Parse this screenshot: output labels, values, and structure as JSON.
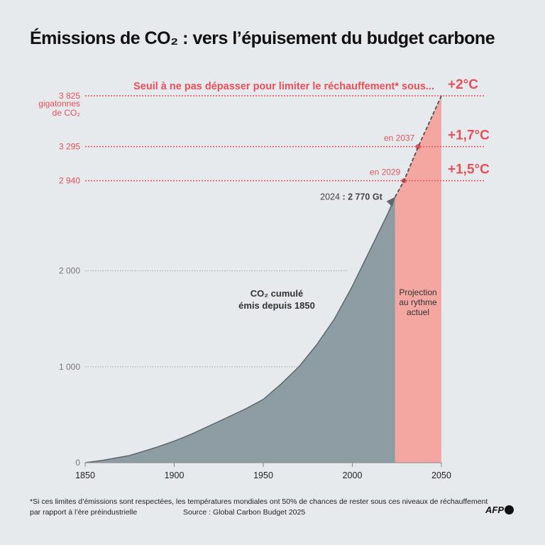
{
  "title": "Émissions de CO₂ : vers l’épuisement du budget carbone",
  "chart_data": {
    "type": "area",
    "title": "Émissions de CO₂ : vers l’épuisement du budget carbone",
    "xlim": [
      1850,
      2050
    ],
    "ylim": [
      0,
      3825
    ],
    "x_ticks": [
      "1850",
      "1900",
      "1950",
      "2000",
      "2050"
    ],
    "y_ticks": [
      {
        "value": 0,
        "label": "0"
      },
      {
        "value": 1000,
        "label": "1 000"
      },
      {
        "value": 2000,
        "label": "2 000"
      }
    ],
    "y_unit_label": "gigatonnes de CO₂",
    "historical": {
      "label": "CO₂ cumulé émis depuis 1850",
      "color": "#8e9ca3",
      "x": [
        1850,
        1860,
        1875,
        1890,
        1900,
        1910,
        1925,
        1940,
        1950,
        1960,
        1970,
        1980,
        1990,
        2000,
        2010,
        2020,
        2024
      ],
      "y": [
        0,
        25,
        75,
        160,
        225,
        300,
        430,
        560,
        660,
        820,
        1000,
        1230,
        1500,
        1840,
        2220,
        2600,
        2770
      ]
    },
    "projection": {
      "label": "Projection au rythme actuel",
      "color": "#f4a6a0",
      "x": [
        2024,
        2029,
        2037,
        2050
      ],
      "y": [
        2770,
        2940,
        3295,
        3825
      ]
    },
    "annotation_2024": {
      "year": "2024",
      "value": ": 2 770 Gt"
    },
    "threshold_header": "Seuil à ne pas dépasser pour limiter le réchauffement* sous...",
    "thresholds": [
      {
        "value": 3825,
        "label": "3 825",
        "temp": "+2°C",
        "year_label": ""
      },
      {
        "value": 3295,
        "label": "3 295",
        "temp": "+1,7°C",
        "year_label": "en 2037",
        "year": 2037
      },
      {
        "value": 2940,
        "label": "2 940",
        "temp": "+1,5°C",
        "year_label": "en 2029",
        "year": 2029
      }
    ],
    "accent_color": "#e5505a"
  },
  "footer": {
    "note_line1": "*Si ces limites d’émissions sont respectées, les températures mondiales ont 50% de chances de rester sous ces niveaux de réchauffement",
    "note_line2": "par rapport à l’ère préindustrielle",
    "source": "Source : Global Carbon Budget 2025",
    "logo": "AFP"
  }
}
